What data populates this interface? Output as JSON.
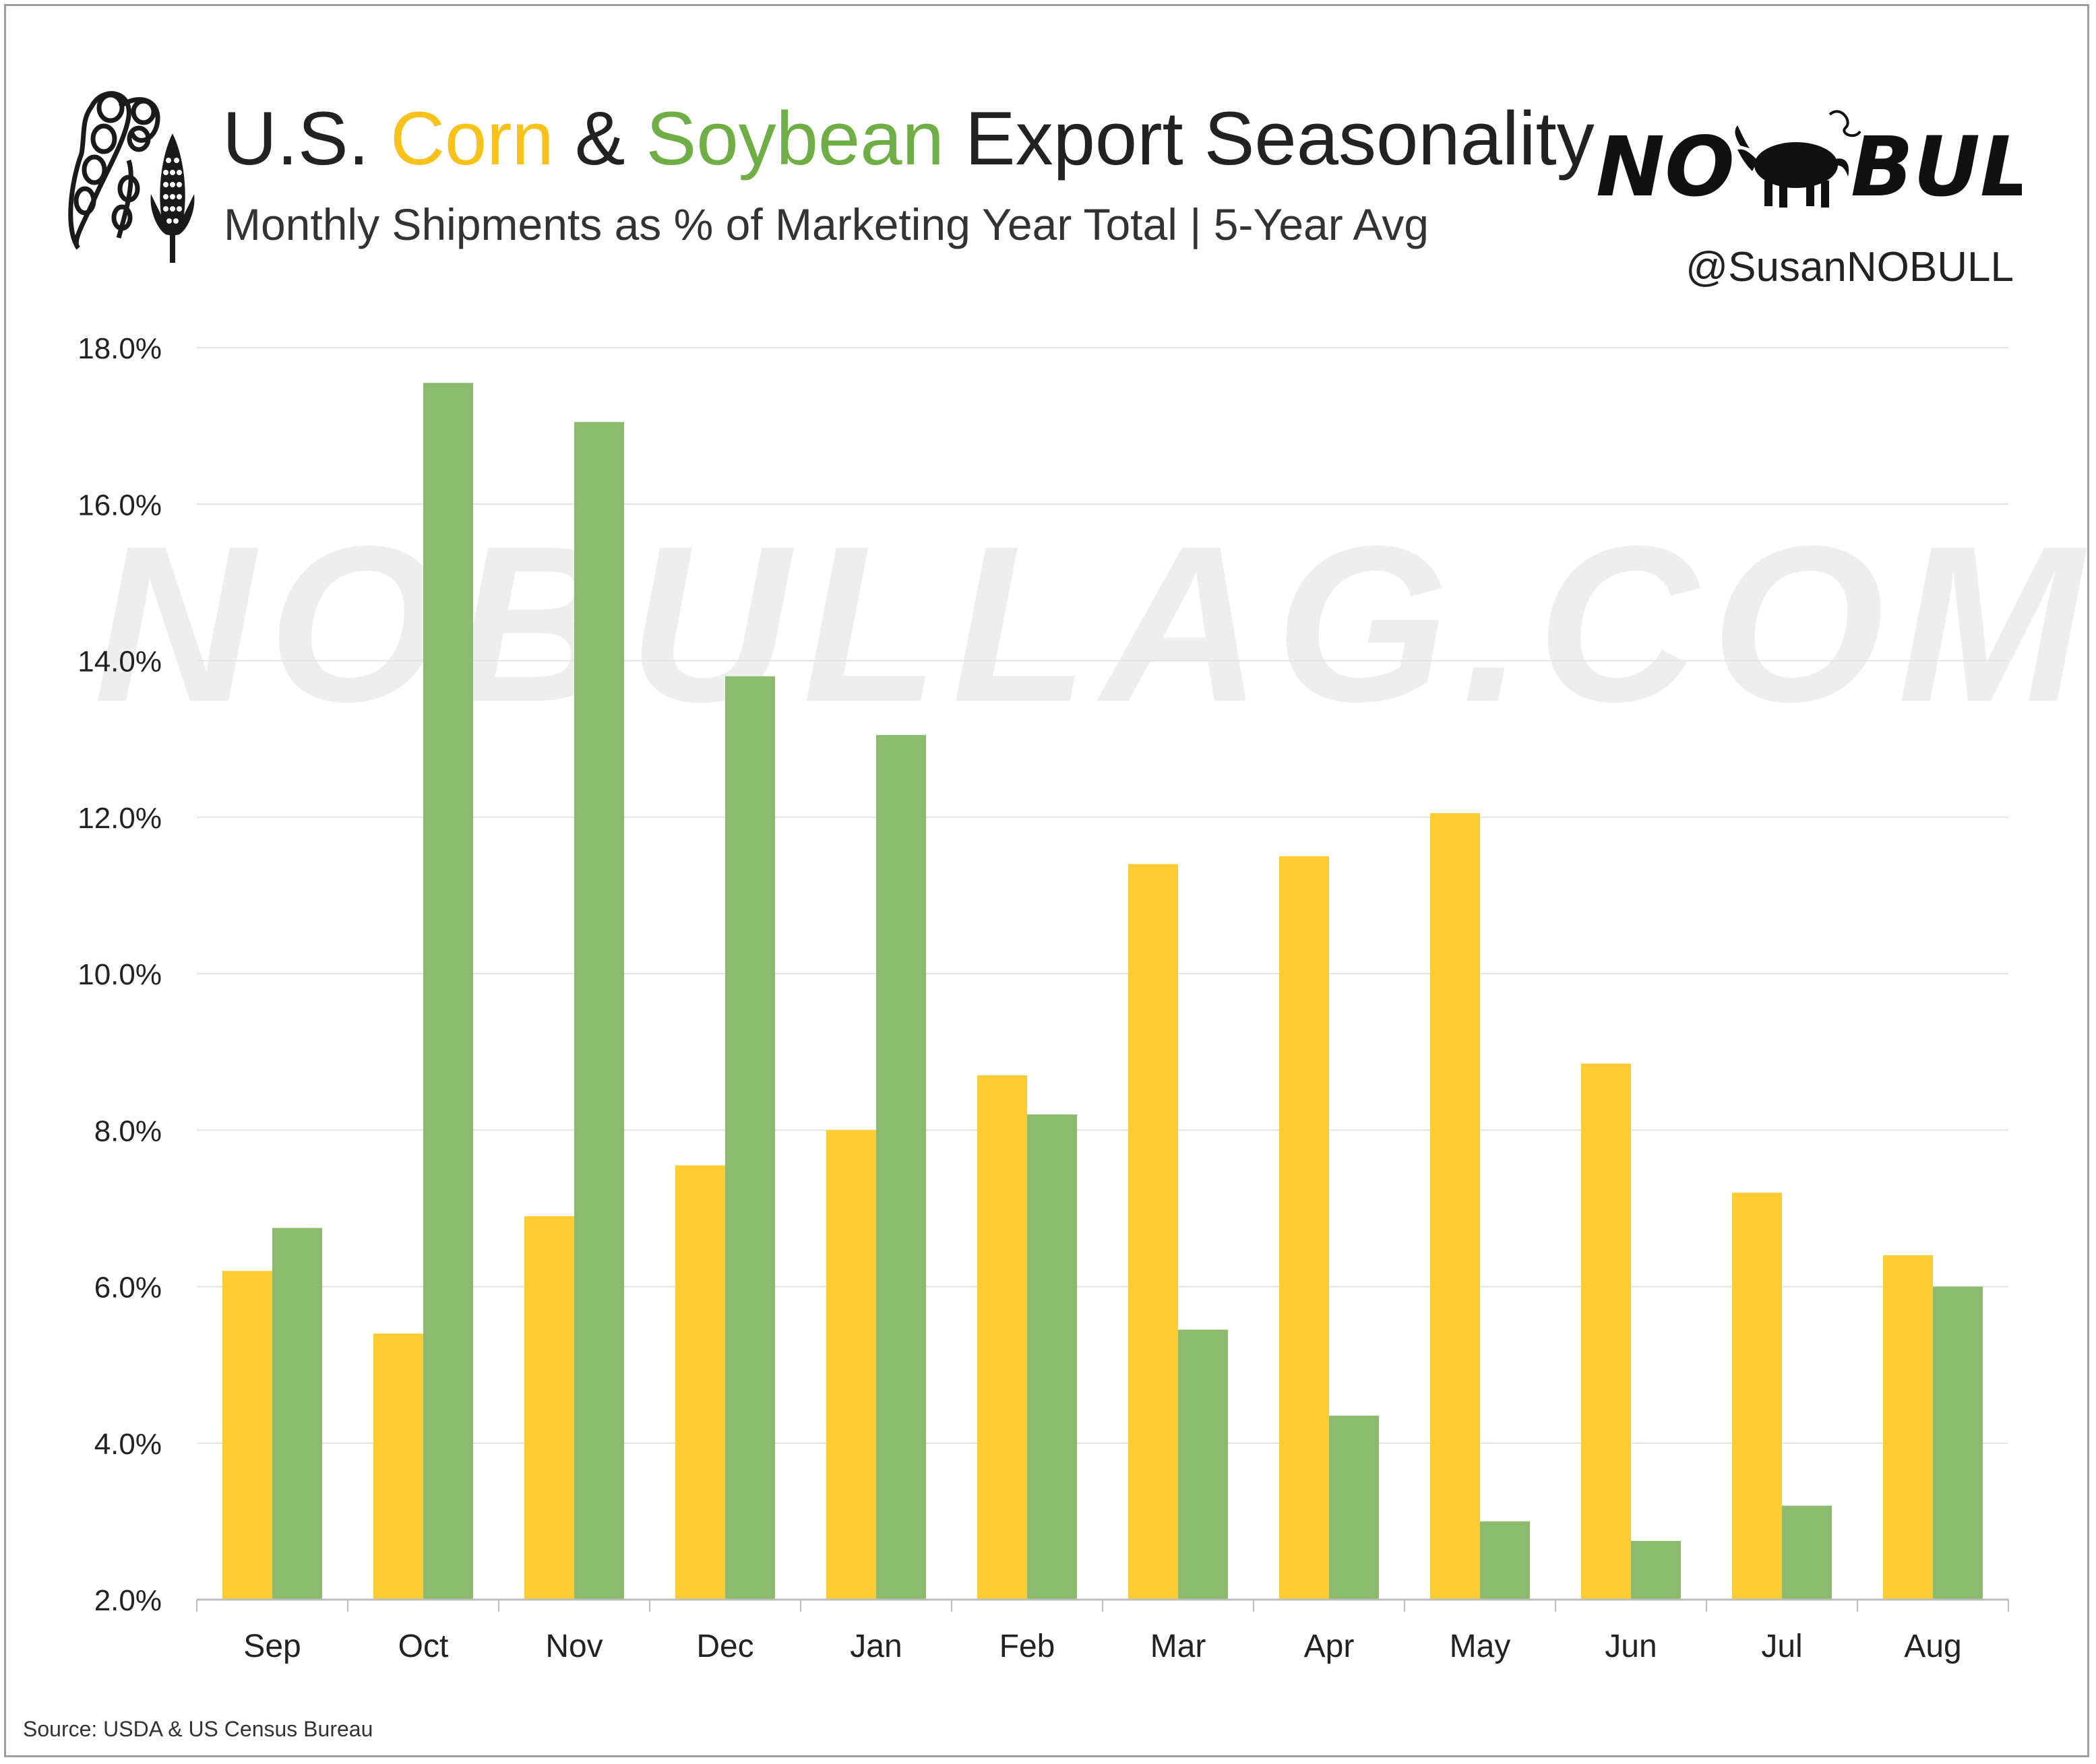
{
  "header": {
    "title_part1": "U.S. ",
    "title_corn": "Corn",
    "title_part2": " & ",
    "title_soybean": "Soybean",
    "title_part3": " Export Seasonality",
    "subtitle": "Monthly Shipments as % of Marketing Year Total | 5-Year Avg",
    "logo_icon": "corn-and-soybean-pod-icon"
  },
  "brand": {
    "logo_text_left": "NO",
    "logo_text_right": "BULL",
    "logo_icon": "bull-icon",
    "handle": "@SusanNOBULL"
  },
  "watermark": "NOBULLAG.COM",
  "source": "Source: USDA & US Census Bureau",
  "colors": {
    "corn": "#fecb32",
    "soybean": "#8bbb6c",
    "corn_title": "#f9c21a",
    "soybean_title": "#6fae45",
    "grid": "#e4e4e4",
    "watermark": "#eeeeee"
  },
  "chart_data": {
    "type": "bar",
    "categories": [
      "Sep",
      "Oct",
      "Nov",
      "Dec",
      "Jan",
      "Feb",
      "Mar",
      "Apr",
      "May",
      "Jun",
      "Jul",
      "Aug"
    ],
    "series": [
      {
        "key": "corn",
        "values": [
          6.2,
          5.4,
          6.9,
          7.55,
          8.0,
          8.7,
          11.4,
          11.5,
          12.05,
          8.85,
          7.2,
          6.4
        ]
      },
      {
        "key": "soybean",
        "values": [
          6.75,
          17.55,
          17.05,
          13.8,
          13.05,
          8.2,
          5.45,
          4.35,
          3.0,
          2.75,
          3.2,
          6.0
        ]
      }
    ],
    "ylim": [
      2,
      18
    ],
    "yticks": [
      2,
      4,
      6,
      8,
      10,
      12,
      14,
      16,
      18
    ],
    "ytick_labels": [
      "2.0%",
      "4.0%",
      "6.0%",
      "8.0%",
      "10.0%",
      "12.0%",
      "14.0%",
      "16.0%",
      "18.0%"
    ],
    "grid": true,
    "legend": "none",
    "xlabel": "",
    "ylabel": ""
  }
}
